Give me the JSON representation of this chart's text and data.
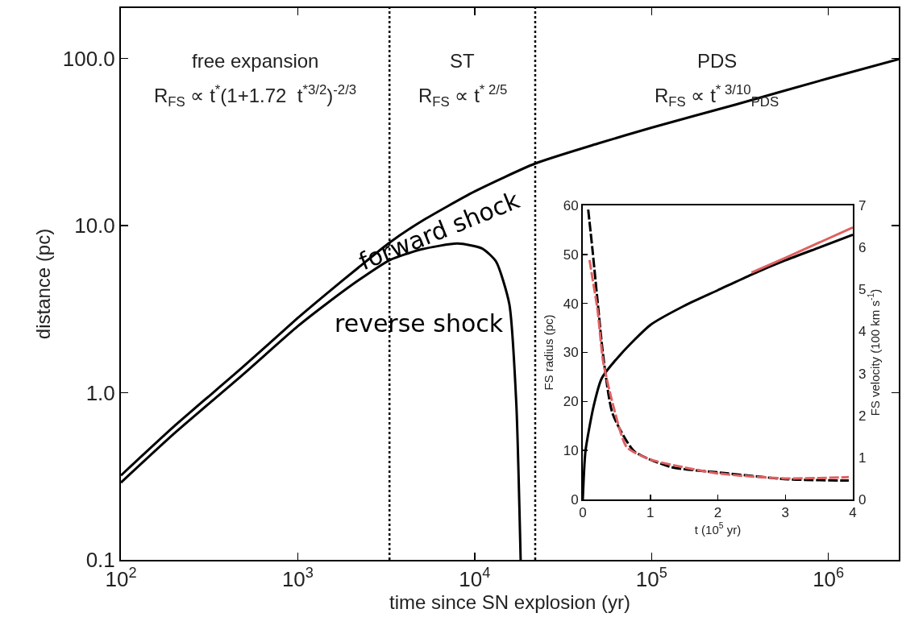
{
  "chart_data": [
    {
      "type": "line",
      "xlabel": "time since SN explosion (yr)",
      "ylabel": "distance (pc)",
      "log": "xy",
      "xlim": [
        100,
        2500000
      ],
      "ylim": [
        0.1,
        200
      ],
      "xticks": [
        {
          "value": 100,
          "label": "10$^{2}$"
        },
        {
          "value": 1000,
          "label": "10$^{3}$"
        },
        {
          "value": 10000,
          "label": "10$^{4}$"
        },
        {
          "value": 100000,
          "label": "10$^{5}$"
        },
        {
          "value": 1000000,
          "label": "10$^{6}$"
        }
      ],
      "yticks": [
        {
          "value": 0.1,
          "label": "0.1"
        },
        {
          "value": 1,
          "label": "1.0"
        },
        {
          "value": 10,
          "label": "10.0"
        },
        {
          "value": 100,
          "label": "100.0"
        }
      ],
      "grid": false,
      "legend": false,
      "marker": "none",
      "line_style": "solid",
      "ref_lines": [
        {
          "axis": "x",
          "value": 3300,
          "line_style": "dotted",
          "color": "#000000"
        },
        {
          "axis": "x",
          "value": 22000,
          "line_style": "dotted",
          "color": "#000000"
        }
      ],
      "annotations": [
        "free expansion",
        "R$_{FS}$ ∝ t$^{*}$(1+1.72  t$^{*3/2}$)$^{-2/3}$",
        "ST",
        "R$_{FS}$ ∝ t$^{* 2/5}$",
        "PDS",
        "R$_{FS}$ ∝ t$^{* 3/10}$$_{PDS}$"
      ],
      "series": [
        {
          "name": "forward shock",
          "color": "#000000",
          "x": [
            100,
            200,
            480,
            1000,
            1450,
            2200,
            3300,
            5000,
            10000,
            22000,
            50000,
            100000,
            300000,
            1000000,
            2500000
          ],
          "values": [
            0.32,
            0.63,
            1.4,
            2.8,
            3.9,
            5.6,
            7.9,
            10.6,
            16,
            23.5,
            31,
            38.5,
            53,
            76,
            99
          ]
        },
        {
          "name": "reverse shock",
          "color": "#000000",
          "x": [
            100,
            200,
            480,
            1000,
            1450,
            2200,
            3300,
            5000,
            8000,
            11000,
            13200,
            15700,
            17200,
            18200
          ],
          "values": [
            0.29,
            0.57,
            1.26,
            2.5,
            3.4,
            4.7,
            6.2,
            7.2,
            7.8,
            7.3,
            6.1,
            3.4,
            0.86,
            0.1
          ]
        }
      ]
    },
    {
      "type": "line",
      "xlabel": "t (10$^{5}$ yr)",
      "ylabel": "FS radius (pc)",
      "y2label": "FS velocity (100 km s$^{-1}$)",
      "xlim": [
        0,
        4
      ],
      "ylim": [
        0,
        60
      ],
      "y2lim": [
        0,
        7
      ],
      "xticks": [
        0,
        1,
        2,
        3,
        4
      ],
      "yticks": [
        0,
        10,
        20,
        30,
        40,
        50,
        60
      ],
      "y2ticks": [
        0,
        1,
        2,
        3,
        4,
        5,
        6,
        7
      ],
      "grid": false,
      "legend": false,
      "marker": "none",
      "series": [
        {
          "color": "#000000",
          "line_style": "solid",
          "x": [
            0,
            0.04,
            0.16,
            0.28,
            0.56,
            1.0,
            1.5,
            2.0,
            2.5,
            3.0,
            3.5,
            4.0
          ],
          "values": [
            0,
            9.9,
            19,
            24.7,
            29.6,
            35.6,
            39.5,
            42.7,
            45.9,
            48.8,
            51.4,
            54
          ]
        },
        {
          "color": "#e06060",
          "line_style": "solid",
          "x": [
            2.5,
            3.0,
            3.5,
            4.0
          ],
          "values": [
            46.3,
            49.3,
            52.4,
            55.5
          ]
        },
        {
          "color": "#000000",
          "line_style": "dashed",
          "axis": "y2",
          "x": [
            0.08,
            0.14,
            0.22,
            0.3,
            0.44,
            0.76,
            1.31,
            2.03,
            3.03,
            3.94
          ],
          "values": [
            6.9,
            6.0,
            4.7,
            3.45,
            2.05,
            1.15,
            0.77,
            0.64,
            0.48,
            0.45
          ]
        },
        {
          "color": "#e06060",
          "line_style": "dashed",
          "axis": "y2",
          "x": [
            0.1,
            0.14,
            0.22,
            0.3,
            0.44,
            0.65,
            1.0,
            2.0,
            3.0,
            3.94
          ],
          "values": [
            5.7,
            5.3,
            4.5,
            3.3,
            2.3,
            1.25,
            0.95,
            0.62,
            0.5,
            0.53
          ]
        }
      ]
    }
  ]
}
